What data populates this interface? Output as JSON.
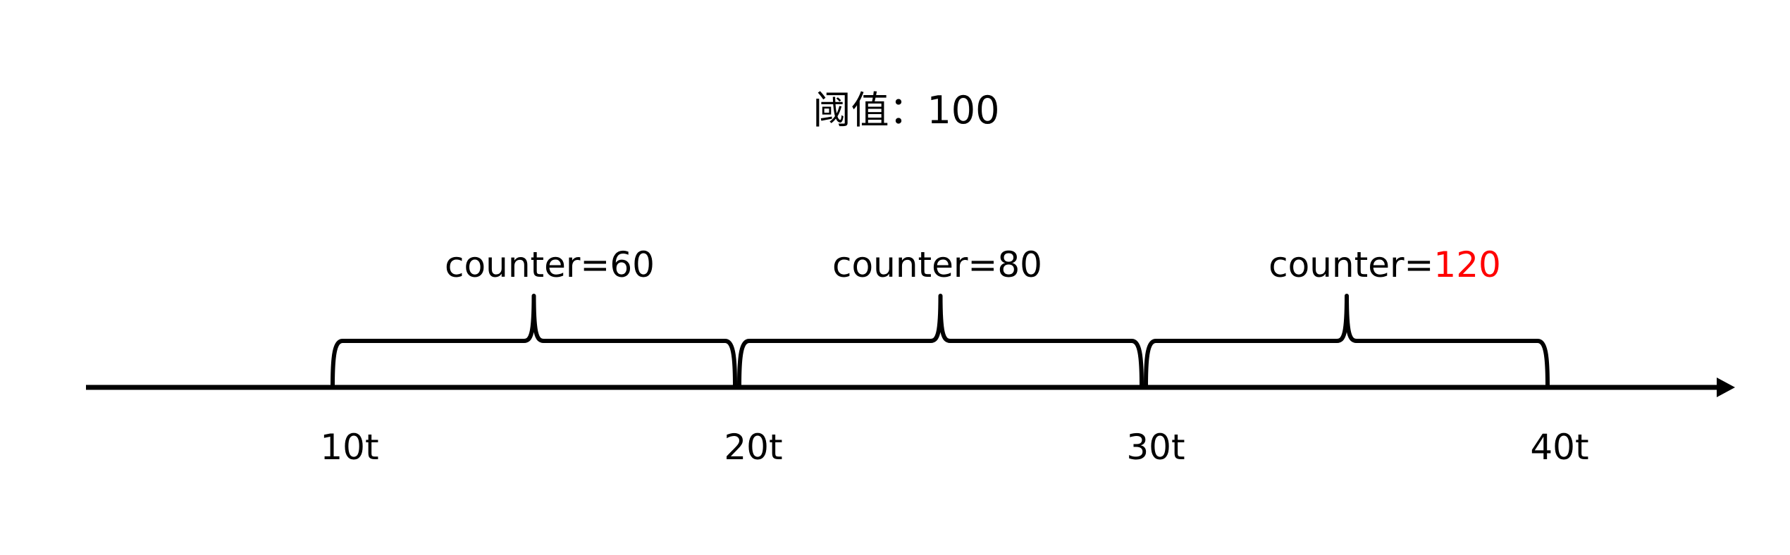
{
  "title": "阈值：100",
  "timeline": {
    "ticks": [
      {
        "label": "10t"
      },
      {
        "label": "20t"
      },
      {
        "label": "30t"
      },
      {
        "label": "40t"
      }
    ],
    "windows": [
      {
        "prefix": "counter=",
        "value": "60",
        "value_color": "#000000"
      },
      {
        "prefix": "counter=",
        "value": "80",
        "value_color": "#000000"
      },
      {
        "prefix": "counter=",
        "value": "120",
        "value_color": "#ff0000"
      }
    ]
  }
}
